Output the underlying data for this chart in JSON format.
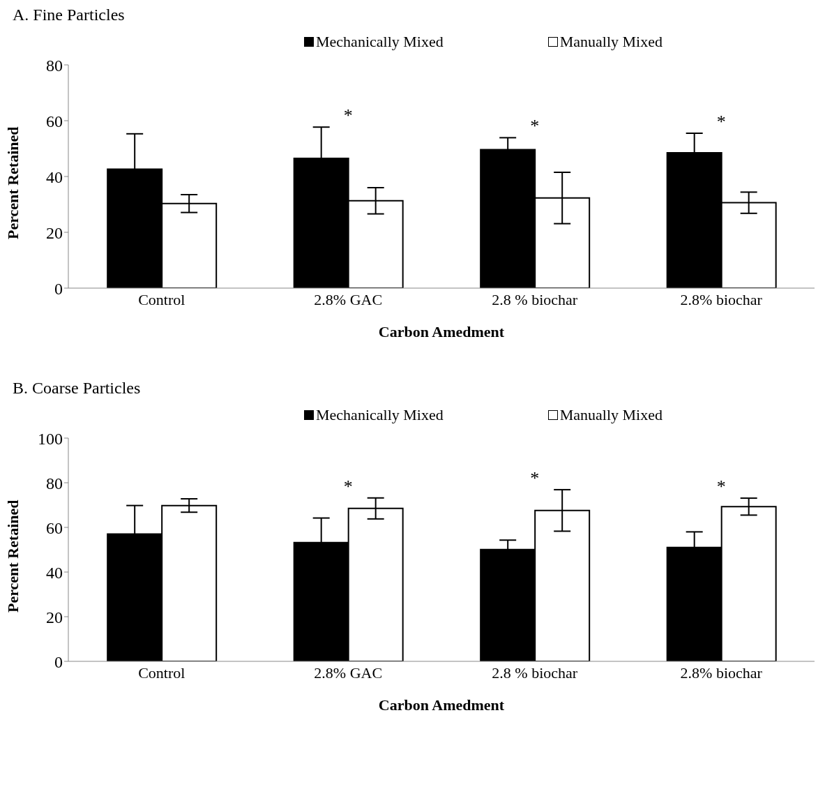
{
  "chart_data": [
    {
      "type": "bar",
      "title": "A. Fine Particles",
      "xlabel": "Carbon Amedment",
      "ylabel": "Percent Retained",
      "categories": [
        "Control",
        "2.8% GAC",
        "2.8 % biochar",
        "2.8% biochar"
      ],
      "series": [
        {
          "name": "Mechanically Mixed",
          "color": "#000000",
          "values": [
            42.6,
            46.5,
            49.6,
            48.5
          ],
          "errors": [
            12.7,
            11.2,
            4.3,
            7.0
          ]
        },
        {
          "name": "Manually Mixed",
          "color": "#ffffff",
          "values": [
            30.3,
            31.3,
            32.3,
            30.6
          ],
          "errors": [
            3.2,
            4.7,
            9.2,
            3.8
          ]
        }
      ],
      "ylim": [
        0,
        80
      ],
      "yticks": [
        0,
        20,
        40,
        60,
        80
      ],
      "grid": false,
      "legend": "top",
      "annotations": [
        "*",
        "*",
        "*"
      ]
    },
    {
      "type": "bar",
      "title": "B. Coarse Particles",
      "xlabel": "Carbon Amedment",
      "ylabel": "Percent Retained",
      "categories": [
        "Control",
        "2.8% GAC",
        "2.8 % biochar",
        "2.8% biochar"
      ],
      "series": [
        {
          "name": "Mechanically Mixed",
          "color": "#000000",
          "values": [
            57.0,
            53.2,
            50.1,
            51.0
          ],
          "errors": [
            12.8,
            11.0,
            4.2,
            7.0
          ]
        },
        {
          "name": "Manually Mixed",
          "color": "#ffffff",
          "values": [
            69.8,
            68.5,
            67.6,
            69.3
          ],
          "errors": [
            3.0,
            4.7,
            9.3,
            3.8
          ]
        }
      ],
      "ylim": [
        0,
        100
      ],
      "yticks": [
        0,
        20,
        40,
        60,
        80,
        100
      ],
      "grid": false,
      "legend": "top",
      "annotations": [
        "*",
        "*",
        "*"
      ]
    }
  ]
}
